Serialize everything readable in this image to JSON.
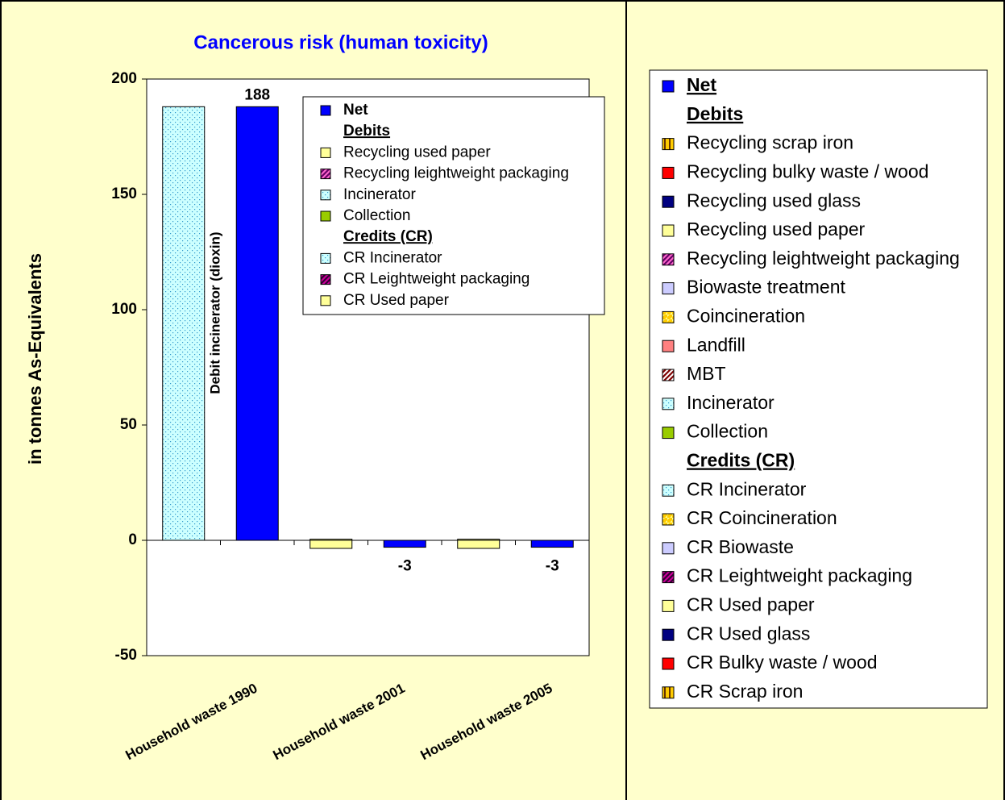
{
  "chart_data": {
    "type": "bar",
    "title": "Cancerous risk (human toxicity)",
    "ylabel": "in tonnes As-Equivalents",
    "annotation": "Debit incinerator (dioxin)",
    "categories": [
      "Household waste 1990",
      "Household waste 2001",
      "Household waste 2005"
    ],
    "ylim": [
      -50,
      200
    ],
    "yticks": [
      -50,
      0,
      50,
      100,
      150,
      200
    ],
    "net": {
      "name": "Net",
      "color": "#0000ff",
      "values": [
        188,
        -3,
        -3
      ],
      "inner_legend": true
    },
    "debits": {
      "title": "Debits",
      "series": [
        {
          "name": "Recycling scrap iron",
          "color": "#ffcc00",
          "pattern": "vstripes",
          "pattern_color": "#663300",
          "values": [
            0,
            0,
            0
          ],
          "inner_legend": false
        },
        {
          "name": "Recycling bulky waste / wood",
          "color": "#ff0000",
          "values": [
            0,
            0,
            0
          ],
          "inner_legend": false
        },
        {
          "name": "Recycling used glass",
          "color": "#000080",
          "values": [
            0,
            0,
            0
          ],
          "inner_legend": false
        },
        {
          "name": "Recycling used paper",
          "color": "#ffff99",
          "values": [
            0,
            0.5,
            0.5
          ],
          "inner_legend": true
        },
        {
          "name": "Recycling leightweight packaging",
          "color": "#ff66cc",
          "pattern": "diag",
          "pattern_color": "#660066",
          "values": [
            0,
            0,
            0
          ],
          "inner_legend": true
        },
        {
          "name": "Biowaste treatment",
          "color": "#ccccff",
          "values": [
            0,
            0,
            0
          ],
          "inner_legend": false
        },
        {
          "name": "Coincineration",
          "color": "#ffcc00",
          "pattern": "split",
          "pattern_color": "#ffff99",
          "values": [
            0,
            0,
            0
          ],
          "inner_legend": false
        },
        {
          "name": "Landfill",
          "color": "#ff8080",
          "values": [
            0,
            0,
            0
          ],
          "inner_legend": false
        },
        {
          "name": "MBT",
          "color": "#ffffff",
          "pattern": "diag",
          "pattern_color": "#800000",
          "values": [
            0,
            0,
            0
          ],
          "inner_legend": false
        },
        {
          "name": "Incinerator",
          "color": "#ccffff",
          "pattern": "dots",
          "pattern_color": "#3399cc",
          "values": [
            188,
            0,
            0
          ],
          "inner_legend": true
        },
        {
          "name": "Collection",
          "color": "#99cc00",
          "values": [
            0,
            0,
            0
          ],
          "inner_legend": true
        }
      ]
    },
    "credits": {
      "title": "Credits (CR)",
      "series": [
        {
          "name": "CR Incinerator",
          "color": "#ccffff",
          "pattern": "dots",
          "pattern_color": "#3399cc",
          "values": [
            0,
            0,
            0
          ],
          "inner_legend": true
        },
        {
          "name": "CR Coincineration",
          "color": "#ffcc00",
          "pattern": "split",
          "pattern_color": "#ffff99",
          "values": [
            0,
            0,
            0
          ],
          "inner_legend": false
        },
        {
          "name": "CR Biowaste",
          "color": "#ccccff",
          "values": [
            0,
            0,
            0
          ],
          "inner_legend": false
        },
        {
          "name": "CR Leightweight packaging",
          "color": "#cc0099",
          "pattern": "diag",
          "pattern_color": "#330033",
          "values": [
            0,
            0,
            0
          ],
          "inner_legend": true
        },
        {
          "name": "CR Used paper",
          "color": "#ffff99",
          "values": [
            0,
            -3.5,
            -3.5
          ],
          "inner_legend": true
        },
        {
          "name": "CR Used glass",
          "color": "#000080",
          "values": [
            0,
            0,
            0
          ],
          "inner_legend": false
        },
        {
          "name": "CR Bulky waste / wood",
          "color": "#ff0000",
          "values": [
            0,
            0,
            0
          ],
          "inner_legend": false
        },
        {
          "name": "CR Scrap iron",
          "color": "#ffcc00",
          "pattern": "vstripes",
          "pattern_color": "#663300",
          "values": [
            0,
            0,
            0
          ],
          "inner_legend": false
        }
      ]
    }
  }
}
